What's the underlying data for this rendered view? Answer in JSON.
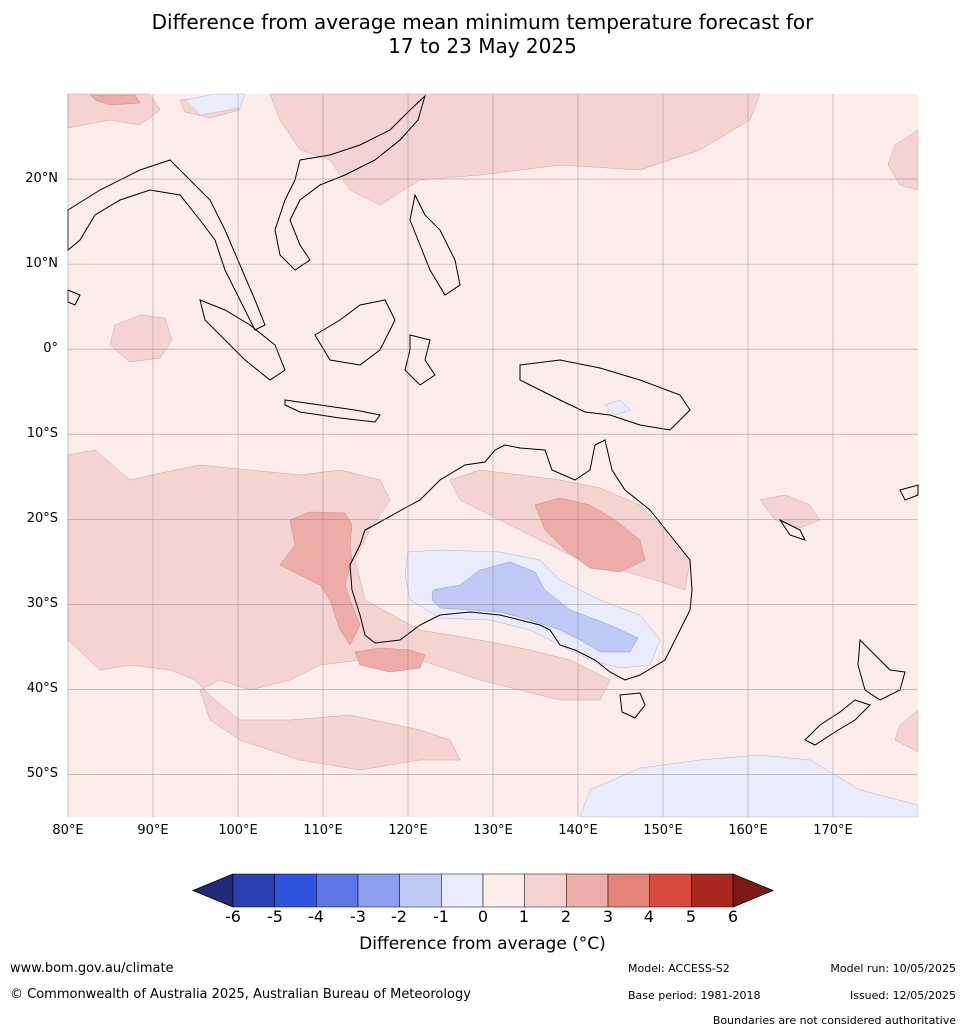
{
  "title_line1": "Difference from average mean minimum temperature forecast for",
  "title_line2": "17 to 23 May 2025",
  "lat_labels": [
    "20°N",
    "10°N",
    "0°",
    "10°S",
    "20°S",
    "30°S",
    "40°S",
    "50°S"
  ],
  "lon_labels": [
    "80°E",
    "90°E",
    "100°E",
    "110°E",
    "120°E",
    "130°E",
    "140°E",
    "150°E",
    "160°E",
    "170°E"
  ],
  "colorbar": {
    "ticks": [
      "-6",
      "-5",
      "-4",
      "-3",
      "-2",
      "-1",
      "0",
      "1",
      "2",
      "3",
      "4",
      "5",
      "6"
    ],
    "colors": [
      "#1f2a7a",
      "#2a3fb4",
      "#3154e0",
      "#5e76e6",
      "#8c9eed",
      "#c0c8f5",
      "#e8ecfb",
      "#fcecea",
      "#f5d3d0",
      "#edaca7",
      "#e48479",
      "#d84a3e",
      "#a8281f",
      "#7a1a14"
    ],
    "label": "Difference from average (°C)"
  },
  "map": {
    "extent": {
      "lon_min": 80,
      "lon_max": 180,
      "lat_min": -55,
      "lat_max": 30
    },
    "background_color": "#fcecea"
  },
  "footer": {
    "website": "www.bom.gov.au/climate",
    "copyright": "© Commonwealth of Australia 2025, Australian Bureau of Meteorology",
    "model": "Model: ACCESS-S2",
    "base_period": "Base period: 1981-2018",
    "model_run": "Model run: 10/05/2025",
    "issued": "Issued: 12/05/2025",
    "disclaimer": "Boundaries are not considered authoritative"
  }
}
